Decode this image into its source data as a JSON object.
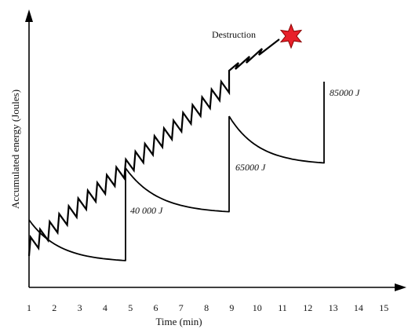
{
  "chart_data": {
    "type": "line",
    "xlabel": "Time (min)",
    "ylabel": "Accumulated energy (Joules)",
    "x_ticks": [
      "1",
      "2",
      "3",
      "4",
      "5",
      "6",
      "7",
      "8",
      "9",
      "10",
      "11",
      "12",
      "13",
      "14",
      "15"
    ],
    "xlim": [
      1,
      15
    ],
    "y_ticks_shown": false,
    "grid": false,
    "annotations": {
      "destruction": "Destruction",
      "level_1": "40 000 J",
      "level_2": "65000 J",
      "level_3": "85000 J"
    },
    "decay_curves": [
      {
        "start_time": 1.0,
        "end_time": 5.0
      },
      {
        "start_time": 5.0,
        "end_time": 9.3
      },
      {
        "start_time": 9.3,
        "end_time": 13.0
      }
    ],
    "accumulation": {
      "start_time": 1.0,
      "destruction_time": 11.8,
      "pulses_per_interval": 1
    },
    "colors": {
      "line": "#000000",
      "destruction_star": "#e8202a"
    }
  }
}
